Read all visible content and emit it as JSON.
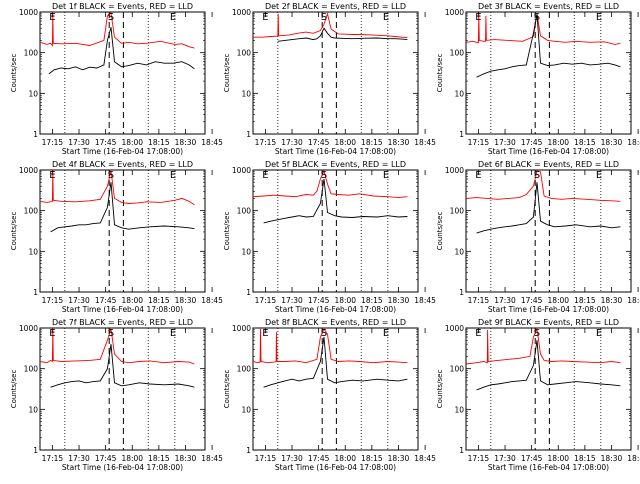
{
  "chart_data": [
    {
      "type": "line",
      "title": "Det 1f BLACK = Events, RED = LLD",
      "ylabel": "Counts/sec",
      "xlabel": "Start Time (16-Feb-04 17:08:00)",
      "x_ticks": [
        "17:15",
        "17:30",
        "17:45",
        "18:00",
        "18:15",
        "18:30",
        "18:45"
      ],
      "y_ticks": [
        "1",
        "10",
        "100",
        "1000"
      ],
      "yscale": "log",
      "ylim": [
        1,
        1000
      ],
      "markers": {
        "S_label": "S",
        "E_label": "E"
      },
      "series": [
        {
          "color": "#ff0000",
          "x": [
            0,
            4,
            6,
            7,
            7.2,
            7.5,
            12,
            20,
            28,
            36,
            38,
            40,
            42,
            46,
            50,
            55,
            60,
            68,
            76,
            80,
            84,
            87
          ],
          "values": [
            180,
            160,
            170,
            150,
            1000,
            170,
            165,
            170,
            150,
            200,
            800,
            950,
            240,
            170,
            180,
            165,
            170,
            190,
            160,
            165,
            140,
            130
          ]
        },
        {
          "color": "#000000",
          "x": [
            5,
            8,
            12,
            16,
            20,
            24,
            28,
            32,
            36,
            38,
            40,
            42,
            46,
            50,
            55,
            60,
            65,
            70,
            75,
            80,
            84,
            87
          ],
          "values": [
            30,
            38,
            42,
            40,
            45,
            38,
            44,
            42,
            50,
            200,
            420,
            60,
            45,
            48,
            55,
            50,
            60,
            55,
            55,
            60,
            50,
            40
          ]
        }
      ]
    },
    {
      "type": "line",
      "title": "Det 2f BLACK = Events, RED = LLD",
      "ylabel": "Counts/sec",
      "xlabel": "Start Time (16-Feb-04 17:08:00)",
      "x_ticks": [
        "17:15",
        "17:30",
        "17:45",
        "18:00",
        "18:15",
        "18:30",
        "18:45"
      ],
      "y_ticks": [
        "1",
        "10",
        "100",
        "1000"
      ],
      "yscale": "log",
      "ylim": [
        1,
        1000
      ],
      "markers": {
        "S_label": "S",
        "E_label": "E"
      },
      "series": [
        {
          "color": "#ff0000",
          "x": [
            0,
            5,
            10,
            14,
            14.2,
            14.5,
            20,
            25,
            30,
            34,
            38,
            40,
            42,
            44,
            48,
            52,
            56,
            60,
            68,
            76,
            80,
            84,
            87
          ],
          "values": [
            240,
            240,
            250,
            255,
            900,
            260,
            270,
            300,
            320,
            300,
            350,
            500,
            900,
            380,
            290,
            285,
            280,
            280,
            270,
            260,
            250,
            240,
            235
          ]
        },
        {
          "color": "#000000",
          "x": [
            14,
            18,
            22,
            26,
            30,
            34,
            36,
            38,
            40,
            42,
            44,
            46,
            50,
            56,
            62,
            70,
            76,
            80,
            84,
            87
          ],
          "values": [
            190,
            200,
            210,
            220,
            230,
            210,
            220,
            260,
            400,
            300,
            240,
            230,
            225,
            220,
            225,
            230,
            220,
            220,
            215,
            210
          ]
        }
      ]
    },
    {
      "type": "line",
      "title": "Det 3f BLACK = Events, RED = LLD",
      "ylabel": "Counts/sec",
      "xlabel": "Start Time (16-Feb-04 17:08:00)",
      "x_ticks": [
        "17:15",
        "17:30",
        "17:45",
        "18:00",
        "18:15",
        "18:30",
        "18:45"
      ],
      "y_ticks": [
        "1",
        "10",
        "100",
        "1000"
      ],
      "yscale": "log",
      "ylim": [
        1,
        1000
      ],
      "markers": {
        "S_label": "S",
        "E_label": "E"
      },
      "series": [
        {
          "color": "#ff0000",
          "x": [
            0,
            4,
            6,
            7,
            7.2,
            7.5,
            10,
            11,
            11.2,
            11.5,
            16,
            24,
            32,
            38,
            40,
            42,
            46,
            50,
            56,
            62,
            70,
            78,
            84,
            87
          ],
          "values": [
            180,
            190,
            180,
            175,
            950,
            200,
            190,
            190,
            800,
            200,
            210,
            200,
            190,
            250,
            900,
            260,
            200,
            190,
            180,
            190,
            180,
            185,
            160,
            170
          ]
        },
        {
          "color": "#000000",
          "x": [
            6,
            10,
            14,
            18,
            22,
            26,
            30,
            34,
            38,
            40,
            42,
            46,
            50,
            55,
            60,
            65,
            70,
            75,
            80,
            84,
            87
          ],
          "values": [
            25,
            30,
            35,
            38,
            40,
            45,
            48,
            50,
            300,
            900,
            55,
            48,
            50,
            55,
            52,
            55,
            50,
            52,
            55,
            50,
            45
          ]
        }
      ]
    },
    {
      "type": "line",
      "title": "Det 4f BLACK = Events, RED = LLD",
      "ylabel": "Counts/sec",
      "xlabel": "Start Time (16-Feb-04 17:08:00)",
      "x_ticks": [
        "17:15",
        "17:30",
        "17:45",
        "18:00",
        "18:15",
        "18:30",
        "18:45"
      ],
      "y_ticks": [
        "1",
        "10",
        "100",
        "1000"
      ],
      "yscale": "log",
      "ylim": [
        1,
        1000
      ],
      "markers": {
        "S_label": "S",
        "E_label": "E"
      },
      "series": [
        {
          "color": "#ff0000",
          "x": [
            0,
            4,
            6,
            7,
            7.2,
            7.5,
            12,
            20,
            28,
            34,
            38,
            40,
            42,
            46,
            50,
            55,
            60,
            68,
            76,
            80,
            84,
            87
          ],
          "values": [
            170,
            160,
            165,
            170,
            1000,
            180,
            170,
            165,
            175,
            190,
            400,
            950,
            200,
            160,
            150,
            155,
            165,
            160,
            180,
            200,
            170,
            140
          ]
        },
        {
          "color": "#000000",
          "x": [
            6,
            10,
            14,
            18,
            22,
            26,
            30,
            34,
            38,
            40,
            42,
            46,
            50,
            56,
            62,
            70,
            78,
            84,
            87
          ],
          "values": [
            30,
            38,
            40,
            42,
            45,
            45,
            48,
            50,
            120,
            500,
            45,
            38,
            35,
            38,
            40,
            42,
            40,
            38,
            36
          ]
        }
      ]
    },
    {
      "type": "line",
      "title": "Det 5f BLACK = Events, RED = LLD",
      "ylabel": "Counts/sec",
      "xlabel": "Start Time (16-Feb-04 17:08:00)",
      "x_ticks": [
        "17:15",
        "17:30",
        "17:45",
        "18:00",
        "18:15",
        "18:30",
        "18:45"
      ],
      "y_ticks": [
        "1",
        "10",
        "100",
        "1000"
      ],
      "yscale": "log",
      "ylim": [
        1,
        1000
      ],
      "markers": {
        "S_label": "S",
        "E_label": "E"
      },
      "series": [
        {
          "color": "#ff0000",
          "x": [
            0,
            6,
            12,
            18,
            24,
            30,
            34,
            36,
            38,
            40,
            42,
            44,
            48,
            54,
            60,
            68,
            76,
            82,
            87
          ],
          "values": [
            220,
            230,
            240,
            230,
            220,
            250,
            240,
            300,
            600,
            950,
            450,
            260,
            250,
            240,
            260,
            230,
            220,
            210,
            220
          ]
        },
        {
          "color": "#000000",
          "x": [
            6,
            10,
            14,
            18,
            22,
            26,
            30,
            34,
            38,
            40,
            42,
            46,
            50,
            56,
            62,
            70,
            76,
            82,
            87
          ],
          "values": [
            50,
            55,
            60,
            65,
            70,
            75,
            70,
            72,
            150,
            600,
            90,
            75,
            70,
            68,
            72,
            70,
            75,
            70,
            72
          ]
        }
      ]
    },
    {
      "type": "line",
      "title": "Det 6f BLACK = Events, RED = LLD",
      "ylabel": "Counts/sec",
      "xlabel": "Start Time (16-Feb-04 17:08:00)",
      "x_ticks": [
        "17:15",
        "17:30",
        "17:45",
        "18:00",
        "18:15",
        "18:30",
        "18:45"
      ],
      "y_ticks": [
        "1",
        "10",
        "100",
        "1000"
      ],
      "yscale": "log",
      "ylim": [
        1,
        1000
      ],
      "markers": {
        "S_label": "S",
        "E_label": "E"
      },
      "series": [
        {
          "color": "#ff0000",
          "x": [
            0,
            6,
            12,
            18,
            24,
            30,
            34,
            38,
            40,
            42,
            44,
            48,
            54,
            60,
            68,
            76,
            82,
            87
          ],
          "values": [
            200,
            210,
            200,
            190,
            200,
            210,
            250,
            400,
            950,
            900,
            230,
            200,
            190,
            200,
            190,
            180,
            175,
            170
          ]
        },
        {
          "color": "#000000",
          "x": [
            6,
            10,
            14,
            18,
            22,
            26,
            30,
            34,
            38,
            40,
            42,
            46,
            50,
            56,
            62,
            70,
            76,
            82,
            87
          ],
          "values": [
            28,
            32,
            35,
            38,
            40,
            42,
            45,
            48,
            70,
            500,
            55,
            45,
            40,
            42,
            45,
            40,
            42,
            38,
            40
          ]
        }
      ]
    },
    {
      "type": "line",
      "title": "Det 7f BLACK = Events, RED = LLD",
      "ylabel": "Counts/sec",
      "xlabel": "Start Time (16-Feb-04 17:08:00)",
      "x_ticks": [
        "17:15",
        "17:30",
        "17:45",
        "18:00",
        "18:15",
        "18:30",
        "18:45"
      ],
      "y_ticks": [
        "1",
        "10",
        "100",
        "1000"
      ],
      "yscale": "log",
      "ylim": [
        1,
        1000
      ],
      "markers": {
        "S_label": "S",
        "E_label": "E"
      },
      "series": [
        {
          "color": "#ff0000",
          "x": [
            0,
            4,
            6,
            7,
            7.2,
            7.5,
            12,
            20,
            28,
            34,
            38,
            40,
            42,
            46,
            50,
            56,
            62,
            70,
            78,
            84,
            87
          ],
          "values": [
            150,
            140,
            160,
            150,
            1000,
            160,
            150,
            155,
            160,
            170,
            500,
            950,
            230,
            150,
            140,
            150,
            155,
            140,
            150,
            145,
            130
          ]
        },
        {
          "color": "#000000",
          "x": [
            6,
            10,
            14,
            18,
            22,
            26,
            30,
            34,
            38,
            40,
            42,
            46,
            50,
            56,
            62,
            70,
            78,
            84,
            87
          ],
          "values": [
            35,
            40,
            45,
            48,
            50,
            45,
            48,
            50,
            100,
            400,
            45,
            38,
            40,
            45,
            42,
            40,
            42,
            38,
            35
          ]
        }
      ]
    },
    {
      "type": "line",
      "title": "Det 8f BLACK = Events, RED = LLD",
      "ylabel": "Counts/sec",
      "xlabel": "Start Time (16-Feb-04 17:08:00)",
      "x_ticks": [
        "17:15",
        "17:30",
        "17:45",
        "18:00",
        "18:15",
        "18:30",
        "18:45"
      ],
      "y_ticks": [
        "1",
        "10",
        "100",
        "1000"
      ],
      "yscale": "log",
      "ylim": [
        1,
        1000
      ],
      "markers": {
        "S_label": "S",
        "E_label": "E"
      },
      "series": [
        {
          "color": "#ff0000",
          "x": [
            0,
            3,
            4,
            4.2,
            4.5,
            8,
            12,
            13,
            13.2,
            13.5,
            18,
            24,
            30,
            36,
            38,
            40,
            42,
            44,
            48,
            54,
            60,
            68,
            76,
            82,
            87
          ],
          "values": [
            150,
            140,
            145,
            950,
            150,
            140,
            145,
            150,
            800,
            150,
            150,
            155,
            140,
            170,
            600,
            950,
            700,
            170,
            150,
            155,
            150,
            140,
            150,
            145,
            140
          ]
        },
        {
          "color": "#000000",
          "x": [
            6,
            10,
            14,
            18,
            22,
            26,
            30,
            34,
            38,
            40,
            42,
            46,
            50,
            56,
            62,
            70,
            76,
            82,
            87
          ],
          "values": [
            35,
            40,
            45,
            50,
            55,
            50,
            55,
            58,
            150,
            600,
            55,
            45,
            48,
            52,
            50,
            55,
            52,
            50,
            55
          ]
        }
      ]
    },
    {
      "type": "line",
      "title": "Det 9f BLACK = Events, RED = LLD",
      "ylabel": "Counts/sec",
      "xlabel": "Start Time (16-Feb-04 17:08:00)",
      "x_ticks": [
        "17:15",
        "17:30",
        "17:45",
        "18:00",
        "18:15",
        "18:30",
        "18:45"
      ],
      "y_ticks": [
        "1",
        "10",
        "100",
        "1000"
      ],
      "yscale": "log",
      "ylim": [
        1,
        1000
      ],
      "markers": {
        "S_label": "S",
        "E_label": "E"
      },
      "series": [
        {
          "color": "#ff0000",
          "x": [
            0,
            6,
            10,
            12,
            12.2,
            12.5,
            18,
            24,
            30,
            36,
            38,
            40,
            42,
            44,
            48,
            54,
            60,
            68,
            76,
            82,
            87
          ],
          "values": [
            130,
            140,
            150,
            140,
            900,
            150,
            160,
            170,
            180,
            200,
            600,
            950,
            230,
            160,
            150,
            155,
            150,
            145,
            140,
            150,
            140
          ]
        },
        {
          "color": "#000000",
          "x": [
            6,
            10,
            14,
            18,
            22,
            26,
            30,
            34,
            38,
            40,
            42,
            46,
            50,
            56,
            62,
            70,
            76,
            82,
            87
          ],
          "values": [
            30,
            35,
            40,
            42,
            45,
            48,
            50,
            52,
            120,
            500,
            50,
            40,
            42,
            45,
            48,
            45,
            42,
            40,
            38
          ]
        }
      ]
    }
  ]
}
